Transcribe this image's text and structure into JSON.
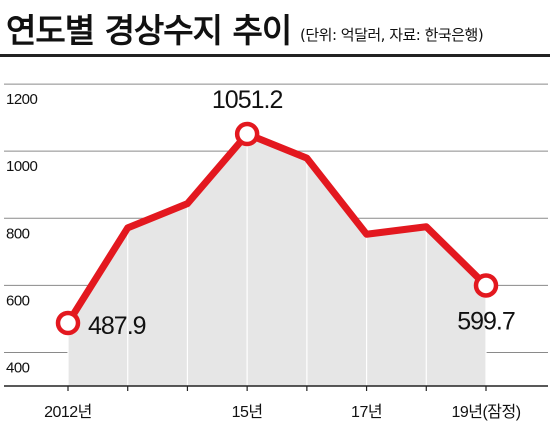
{
  "header": {
    "title": "연도별 경상수지 추이",
    "subtitle": "(단위: 억달러, 자료: 한국은행)"
  },
  "chart_data": {
    "type": "area",
    "title": "연도별 경상수지 추이",
    "subtitle": "(단위: 억달러, 자료: 한국은행)",
    "x": [
      "2012",
      "2013",
      "2014",
      "2015",
      "2016",
      "2017",
      "2018",
      "2019"
    ],
    "x_tick_labels": [
      {
        "index": 0,
        "label": "2012년"
      },
      {
        "index": 3,
        "label": "15년"
      },
      {
        "index": 5,
        "label": "17년"
      },
      {
        "index": 7,
        "label": "19년(잠정)"
      }
    ],
    "series": [
      {
        "values": [
          487.9,
          771.5,
          843.7,
          1051.2,
          979.2,
          752.3,
          774.7,
          599.7
        ]
      }
    ],
    "annotations": [
      {
        "index": 0,
        "label": "487.9"
      },
      {
        "index": 3,
        "label": "1051.2"
      },
      {
        "index": 7,
        "label": "599.7"
      }
    ],
    "ylim": [
      300,
      1230
    ],
    "yticks": [
      400,
      600,
      800,
      1000,
      1200
    ],
    "grid": true,
    "colors": {
      "line": "#e3181f",
      "fill": "#e6e6e6",
      "grid": "#8a8a8a",
      "marker_fill": "#ffffff"
    }
  }
}
